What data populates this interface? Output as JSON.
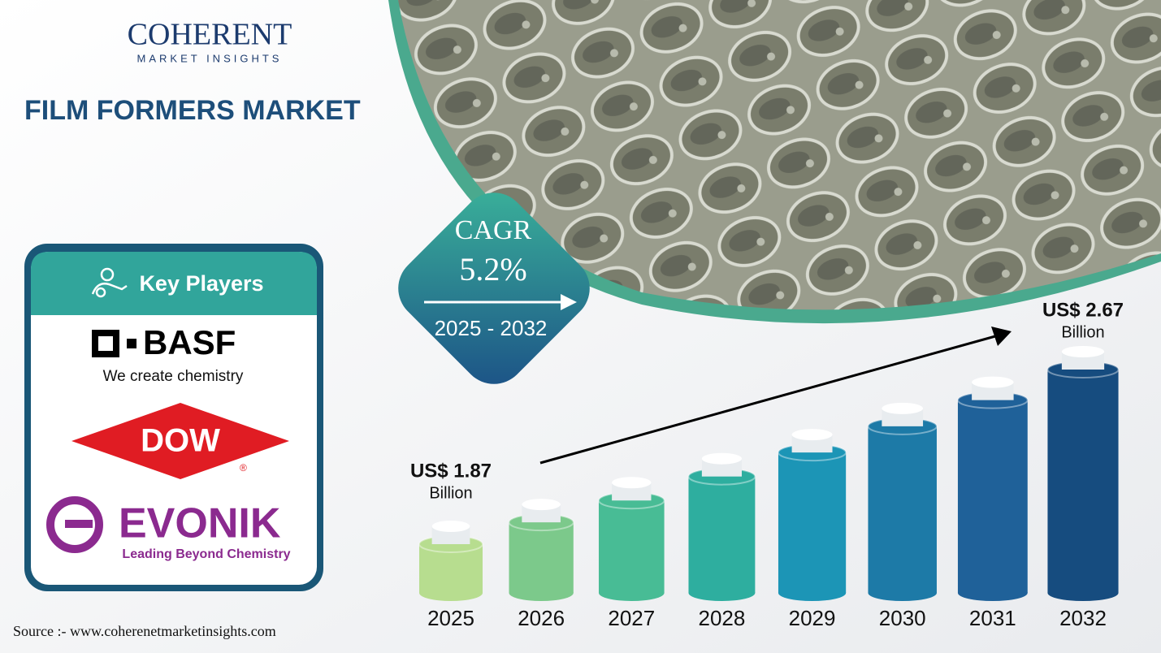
{
  "brand": {
    "name": "COHERENT",
    "tagline": "MARKET INSIGHTS"
  },
  "key_players": {
    "title": "Key Players",
    "companies": [
      {
        "name": "BASF",
        "tagline": "We create chemistry"
      },
      {
        "name": "DOW",
        "tagline": "®"
      },
      {
        "name": "EVONIK",
        "tagline": "Leading Beyond Chemistry"
      }
    ]
  },
  "cagr": {
    "label": "CAGR",
    "value": "5.2%",
    "period": "2025 - 2032"
  },
  "source": "Source :- www.coherenetmarketinsights.com",
  "chart_data": {
    "type": "bar",
    "title": "FILM FORMERS MARKET",
    "categories": [
      "2025",
      "2026",
      "2027",
      "2028",
      "2029",
      "2030",
      "2031",
      "2032"
    ],
    "values": [
      1.87,
      1.97,
      2.07,
      2.18,
      2.29,
      2.41,
      2.53,
      2.67
    ],
    "value_labels": [
      "US$ 1.87",
      null,
      null,
      null,
      null,
      null,
      null,
      "US$ 2.67"
    ],
    "value_unit": "Billion",
    "colors": [
      "#b7dd8f",
      "#7cc98b",
      "#48bc95",
      "#2eae9f",
      "#1c95b6",
      "#1d7aa7",
      "#1f6199",
      "#164c7f"
    ]
  }
}
